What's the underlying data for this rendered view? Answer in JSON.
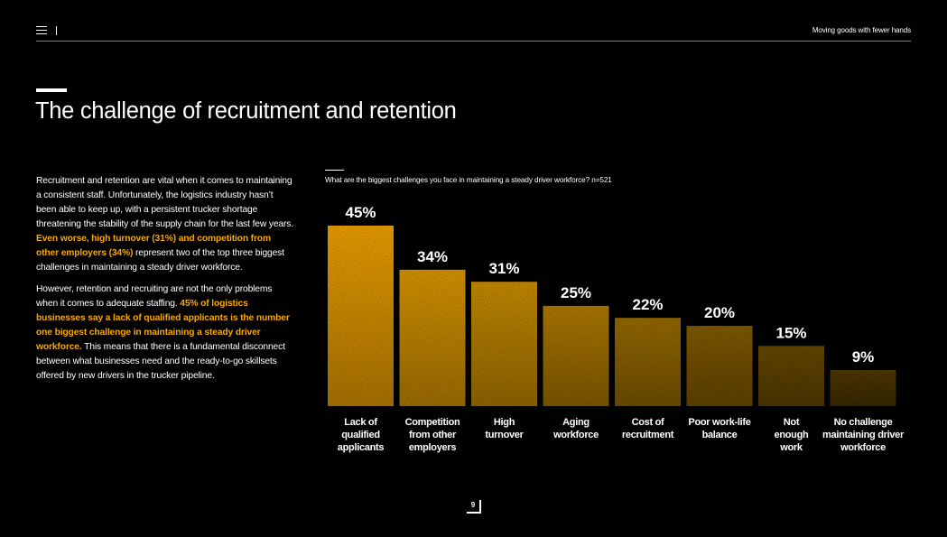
{
  "header": {
    "doc_title": "Moving goods with fewer hands"
  },
  "page": {
    "title": "The challenge of recruitment and retention",
    "number": "9"
  },
  "body": {
    "p1_a": "Recruitment and retention are vital when it comes to maintaining a consistent staff. Unfortunately, the logistics industry hasn’t been able to keep up, with a persistent trucker shortage threatening the stability of the supply chain for the last few years. ",
    "p1_b": "Even worse, high turnover (31%) and competition from other employers (34%)",
    "p1_c": " represent two of the top three biggest challenges in maintaining a steady driver workforce.",
    "p2_a": "However, retention and recruiting are not the only problems when it comes to adequate staffing. ",
    "p2_b": "45% of logistics businesses say a lack of qualified applicants is the number one biggest challenge in maintaining a steady driver workforce.",
    "p2_c": " This means that there is a fundamental disconnect between what businesses need and the ready-to-go skillsets offered by new drivers in the trucker pipeline."
  },
  "chart_data": {
    "type": "bar",
    "title": "What are the biggest challenges you face in maintaining a steady driver workforce? n=521",
    "categories": [
      [
        "Lack of",
        "qualified",
        "applicants"
      ],
      [
        "Competition",
        "from other",
        "employers"
      ],
      [
        "High",
        "turnover"
      ],
      [
        "Aging",
        "workforce"
      ],
      [
        "Cost of",
        "recruitment"
      ],
      [
        "Poor work-life",
        "balance"
      ],
      [
        "Not",
        "enough",
        "work"
      ],
      [
        "No challenge",
        "maintaining driver",
        "workforce"
      ]
    ],
    "values": [
      45,
      34,
      31,
      25,
      22,
      20,
      15,
      9
    ],
    "value_labels": [
      "45%",
      "34%",
      "31%",
      "25%",
      "22%",
      "20%",
      "15%",
      "9%"
    ],
    "ylim": [
      0,
      45
    ],
    "colors": [
      "#fbab00",
      "#e5a000",
      "#d39500",
      "#b98200",
      "#a17200",
      "#8a6200",
      "#6e4f00",
      "#553d00"
    ]
  }
}
